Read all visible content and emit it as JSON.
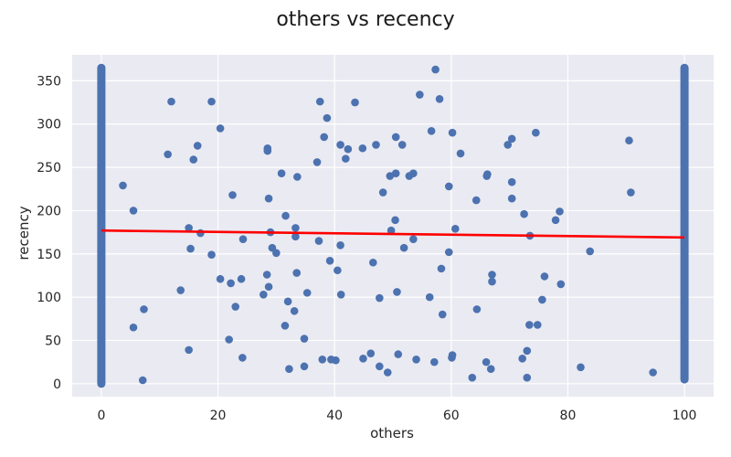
{
  "chart_data": {
    "type": "scatter",
    "title": "others vs recency",
    "xlabel": "others",
    "ylabel": "recency",
    "xlim": [
      -5,
      105
    ],
    "ylim": [
      -15,
      380
    ],
    "xticks": [
      0,
      20,
      40,
      60,
      80,
      100
    ],
    "yticks": [
      0,
      50,
      100,
      150,
      200,
      250,
      300,
      350
    ],
    "grid": true,
    "background": "#eaeaf2",
    "point_color": "#4c72b0",
    "trend_color": "#ff0000",
    "dense_columns": [
      {
        "x": 0,
        "y_min": 0,
        "y_max": 365
      },
      {
        "x": 100,
        "y_min": 5,
        "y_max": 365
      }
    ],
    "trend_line": {
      "x": [
        0,
        100
      ],
      "y": [
        177,
        169
      ]
    },
    "points": [
      [
        3.7,
        229
      ],
      [
        5.5,
        200
      ],
      [
        5.5,
        65
      ],
      [
        7.3,
        86
      ],
      [
        7.1,
        4
      ],
      [
        11.4,
        265
      ],
      [
        12.0,
        326
      ],
      [
        13.6,
        108
      ],
      [
        15.0,
        39
      ],
      [
        15.0,
        180
      ],
      [
        15.3,
        156
      ],
      [
        15.8,
        259
      ],
      [
        16.5,
        275
      ],
      [
        17.0,
        174
      ],
      [
        18.9,
        326
      ],
      [
        18.9,
        149
      ],
      [
        20.4,
        295
      ],
      [
        20.4,
        121
      ],
      [
        21.9,
        51
      ],
      [
        22.5,
        218
      ],
      [
        23.0,
        89
      ],
      [
        22.2,
        116
      ],
      [
        24.0,
        121
      ],
      [
        24.3,
        167
      ],
      [
        24.2,
        30
      ],
      [
        27.8,
        103
      ],
      [
        28.4,
        126
      ],
      [
        28.5,
        272
      ],
      [
        28.5,
        269
      ],
      [
        28.7,
        214
      ],
      [
        28.7,
        112
      ],
      [
        29.0,
        175
      ],
      [
        29.3,
        157
      ],
      [
        30.0,
        151
      ],
      [
        30.9,
        243
      ],
      [
        31.6,
        194
      ],
      [
        31.5,
        67
      ],
      [
        32.0,
        95
      ],
      [
        32.2,
        17
      ],
      [
        33.1,
        84
      ],
      [
        33.3,
        180
      ],
      [
        33.3,
        170
      ],
      [
        33.5,
        128
      ],
      [
        33.6,
        239
      ],
      [
        34.8,
        52
      ],
      [
        34.8,
        20
      ],
      [
        35.3,
        105
      ],
      [
        37.0,
        256
      ],
      [
        37.3,
        165
      ],
      [
        37.5,
        326
      ],
      [
        37.9,
        28
      ],
      [
        38.2,
        285
      ],
      [
        38.7,
        307
      ],
      [
        39.2,
        142
      ],
      [
        39.4,
        28
      ],
      [
        40.2,
        27
      ],
      [
        40.5,
        131
      ],
      [
        41.0,
        276
      ],
      [
        41.0,
        160
      ],
      [
        41.1,
        103
      ],
      [
        41.9,
        260
      ],
      [
        42.3,
        271
      ],
      [
        43.5,
        325
      ],
      [
        44.8,
        272
      ],
      [
        44.9,
        29
      ],
      [
        46.2,
        35
      ],
      [
        46.6,
        140
      ],
      [
        47.1,
        276
      ],
      [
        47.7,
        20
      ],
      [
        47.7,
        99
      ],
      [
        48.3,
        221
      ],
      [
        49.1,
        13
      ],
      [
        49.5,
        240
      ],
      [
        49.7,
        177
      ],
      [
        50.5,
        285
      ],
      [
        50.4,
        189
      ],
      [
        50.5,
        243
      ],
      [
        50.7,
        106
      ],
      [
        50.9,
        34
      ],
      [
        51.6,
        276
      ],
      [
        51.9,
        157
      ],
      [
        52.8,
        240
      ],
      [
        53.5,
        243
      ],
      [
        53.5,
        167
      ],
      [
        54.0,
        28
      ],
      [
        54.6,
        334
      ],
      [
        56.3,
        100
      ],
      [
        56.6,
        292
      ],
      [
        57.1,
        25
      ],
      [
        57.3,
        363
      ],
      [
        58.0,
        329
      ],
      [
        58.3,
        133
      ],
      [
        58.5,
        80
      ],
      [
        59.6,
        228
      ],
      [
        59.6,
        152
      ],
      [
        60.2,
        290
      ],
      [
        60.1,
        30
      ],
      [
        60.2,
        33
      ],
      [
        60.7,
        179
      ],
      [
        61.6,
        266
      ],
      [
        63.6,
        7
      ],
      [
        64.3,
        212
      ],
      [
        64.4,
        86
      ],
      [
        66.1,
        240
      ],
      [
        66.2,
        242
      ],
      [
        66.0,
        25
      ],
      [
        66.8,
        17
      ],
      [
        67.0,
        126
      ],
      [
        67.0,
        118
      ],
      [
        69.7,
        276
      ],
      [
        70.4,
        283
      ],
      [
        70.4,
        214
      ],
      [
        70.4,
        233
      ],
      [
        72.2,
        29
      ],
      [
        72.5,
        196
      ],
      [
        73.0,
        38
      ],
      [
        73.0,
        7
      ],
      [
        73.4,
        68
      ],
      [
        73.5,
        171
      ],
      [
        74.5,
        290
      ],
      [
        74.8,
        68
      ],
      [
        75.6,
        97
      ],
      [
        76.0,
        124
      ],
      [
        77.9,
        189
      ],
      [
        78.6,
        199
      ],
      [
        78.8,
        115
      ],
      [
        82.2,
        19
      ],
      [
        83.8,
        153
      ],
      [
        90.5,
        281
      ],
      [
        90.8,
        221
      ],
      [
        94.6,
        13
      ]
    ]
  }
}
